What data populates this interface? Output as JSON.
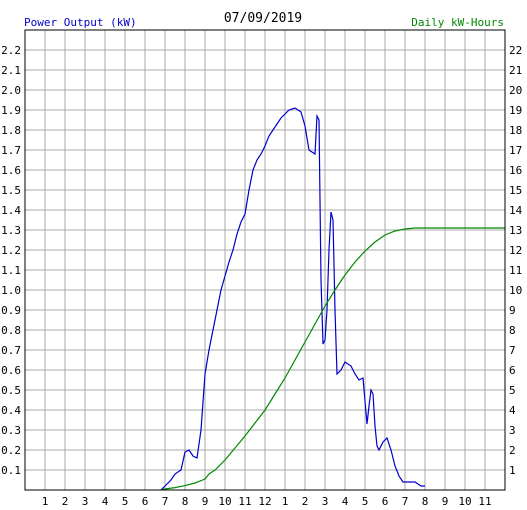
{
  "chart_data": {
    "type": "line",
    "title": "07/09/2019",
    "ylabel_left": "Power Output (kW)",
    "ylabel_right": "Daily kW-Hours",
    "x_ticks": [
      "1",
      "2",
      "3",
      "4",
      "5",
      "6",
      "7",
      "8",
      "9",
      "10",
      "11",
      "12",
      "1",
      "2",
      "3",
      "4",
      "5",
      "6",
      "7",
      "8",
      "9",
      "10",
      "11"
    ],
    "x_range_hours": [
      0,
      24
    ],
    "y_left_ticks": [
      "0.1",
      "0.2",
      "0.3",
      "0.4",
      "0.5",
      "0.6",
      "0.7",
      "0.8",
      "0.9",
      "1.0",
      "1.1",
      "1.2",
      "1.3",
      "1.4",
      "1.5",
      "1.6",
      "1.7",
      "1.8",
      "1.9",
      "2.0",
      "2.1",
      "2.2"
    ],
    "y_left_range": [
      0,
      2.3
    ],
    "y_right_ticks": [
      "1",
      "2",
      "3",
      "4",
      "5",
      "6",
      "7",
      "8",
      "9",
      "10",
      "11",
      "12",
      "13",
      "14",
      "15",
      "16",
      "17",
      "18",
      "19",
      "20",
      "21",
      "22"
    ],
    "y_right_range": [
      0,
      23
    ],
    "grid": true,
    "series": [
      {
        "axis": "left",
        "color": "#0000cc",
        "points": [
          [
            6.8,
            0.0
          ],
          [
            7.0,
            0.02
          ],
          [
            7.3,
            0.05
          ],
          [
            7.5,
            0.08
          ],
          [
            7.8,
            0.1
          ],
          [
            8.0,
            0.19
          ],
          [
            8.2,
            0.2
          ],
          [
            8.4,
            0.17
          ],
          [
            8.6,
            0.16
          ],
          [
            8.8,
            0.3
          ],
          [
            9.0,
            0.58
          ],
          [
            9.2,
            0.7
          ],
          [
            9.4,
            0.8
          ],
          [
            9.6,
            0.9
          ],
          [
            9.8,
            1.0
          ],
          [
            10.0,
            1.07
          ],
          [
            10.2,
            1.14
          ],
          [
            10.4,
            1.2
          ],
          [
            10.6,
            1.28
          ],
          [
            10.8,
            1.34
          ],
          [
            11.0,
            1.38
          ],
          [
            11.2,
            1.5
          ],
          [
            11.4,
            1.6
          ],
          [
            11.6,
            1.65
          ],
          [
            11.8,
            1.68
          ],
          [
            12.0,
            1.72
          ],
          [
            12.2,
            1.77
          ],
          [
            12.4,
            1.8
          ],
          [
            12.6,
            1.83
          ],
          [
            12.8,
            1.86
          ],
          [
            13.0,
            1.88
          ],
          [
            13.2,
            1.9
          ],
          [
            13.5,
            1.91
          ],
          [
            13.8,
            1.89
          ],
          [
            14.0,
            1.82
          ],
          [
            14.2,
            1.7
          ],
          [
            14.5,
            1.68
          ],
          [
            14.6,
            1.87
          ],
          [
            14.7,
            1.85
          ],
          [
            14.8,
            1.05
          ],
          [
            14.9,
            0.73
          ],
          [
            15.0,
            0.75
          ],
          [
            15.1,
            0.9
          ],
          [
            15.2,
            1.2
          ],
          [
            15.3,
            1.39
          ],
          [
            15.4,
            1.35
          ],
          [
            15.5,
            0.9
          ],
          [
            15.6,
            0.58
          ],
          [
            15.8,
            0.6
          ],
          [
            16.0,
            0.64
          ],
          [
            16.3,
            0.62
          ],
          [
            16.5,
            0.58
          ],
          [
            16.7,
            0.55
          ],
          [
            16.9,
            0.56
          ],
          [
            17.1,
            0.33
          ],
          [
            17.2,
            0.42
          ],
          [
            17.3,
            0.5
          ],
          [
            17.4,
            0.48
          ],
          [
            17.5,
            0.32
          ],
          [
            17.6,
            0.22
          ],
          [
            17.7,
            0.2
          ],
          [
            17.9,
            0.24
          ],
          [
            18.1,
            0.26
          ],
          [
            18.3,
            0.2
          ],
          [
            18.5,
            0.12
          ],
          [
            18.7,
            0.07
          ],
          [
            18.9,
            0.04
          ],
          [
            19.1,
            0.04
          ],
          [
            19.5,
            0.04
          ],
          [
            19.8,
            0.02
          ],
          [
            20.0,
            0.02
          ]
        ]
      },
      {
        "axis": "right",
        "color": "#008800",
        "points": [
          [
            6.8,
            0.0
          ],
          [
            7.0,
            0.05
          ],
          [
            7.5,
            0.12
          ],
          [
            8.0,
            0.22
          ],
          [
            8.5,
            0.35
          ],
          [
            9.0,
            0.55
          ],
          [
            9.2,
            0.8
          ],
          [
            9.5,
            1.0
          ],
          [
            10.0,
            1.5
          ],
          [
            10.5,
            2.1
          ],
          [
            11.0,
            2.7
          ],
          [
            11.5,
            3.35
          ],
          [
            12.0,
            4.0
          ],
          [
            12.5,
            4.8
          ],
          [
            13.0,
            5.6
          ],
          [
            13.5,
            6.5
          ],
          [
            14.0,
            7.4
          ],
          [
            14.5,
            8.3
          ],
          [
            15.0,
            9.2
          ],
          [
            15.5,
            10.0
          ],
          [
            16.0,
            10.75
          ],
          [
            16.5,
            11.4
          ],
          [
            17.0,
            11.95
          ],
          [
            17.5,
            12.4
          ],
          [
            18.0,
            12.75
          ],
          [
            18.5,
            12.95
          ],
          [
            19.0,
            13.05
          ],
          [
            19.5,
            13.1
          ],
          [
            24.0,
            13.1
          ]
        ]
      }
    ]
  }
}
